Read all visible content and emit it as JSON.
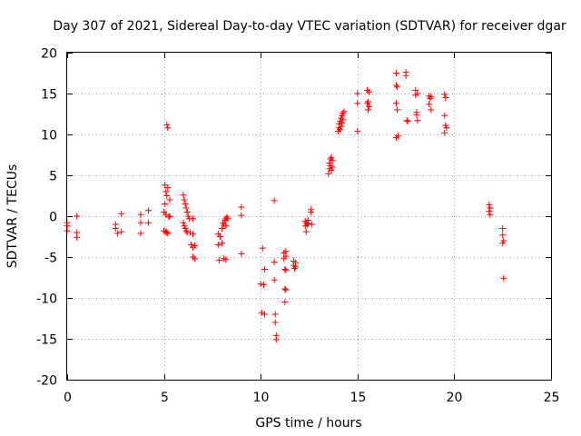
{
  "chart_data": {
    "type": "scatter",
    "title": "Day 307 of 2021, Sidereal Day-to-day VTEC variation (SDTVAR) for receiver dgar",
    "xlabel": "GPS time / hours",
    "ylabel": "SDTVAR / TECUs",
    "xlim": [
      0,
      25
    ],
    "ylim": [
      -20,
      20
    ],
    "xticks": [
      0,
      5,
      10,
      15,
      20,
      25
    ],
    "yticks": [
      -20,
      -15,
      -10,
      -5,
      0,
      5,
      10,
      15,
      20
    ],
    "grid": true,
    "marker": "+",
    "color": "#ff0000",
    "series": [
      {
        "name": "SDTVAR",
        "x": [
          0.0,
          0.0,
          0.0,
          0.5,
          0.5,
          0.5,
          2.5,
          2.5,
          2.6,
          2.8,
          2.8,
          3.8,
          3.8,
          3.8,
          4.2,
          4.2,
          5.0,
          5.0,
          5.05,
          5.05,
          5.1,
          5.1,
          5.1,
          5.15,
          5.15,
          5.15,
          5.2,
          5.2,
          5.2,
          5.25,
          5.3,
          5.3,
          6.0,
          6.0,
          6.05,
          6.05,
          6.1,
          6.1,
          6.15,
          6.15,
          6.2,
          6.2,
          6.25,
          6.3,
          6.35,
          6.4,
          6.5,
          6.5,
          6.5,
          6.5,
          6.6,
          6.6,
          7.8,
          7.8,
          7.85,
          7.9,
          8.0,
          8.0,
          8.05,
          8.1,
          8.1,
          8.15,
          8.2,
          8.2,
          8.2,
          8.25,
          8.3,
          9.0,
          9.0,
          9.0,
          10.0,
          10.05,
          10.1,
          10.15,
          10.2,
          10.2,
          10.7,
          10.7,
          10.7,
          10.75,
          10.75,
          10.8,
          10.8,
          11.2,
          11.2,
          11.25,
          11.25,
          11.25,
          11.3,
          11.3,
          11.3,
          11.3,
          11.7,
          11.7,
          11.75,
          11.8,
          11.8,
          12.3,
          12.3,
          12.35,
          12.35,
          12.4,
          12.45,
          12.45,
          12.6,
          12.6,
          12.65,
          13.5,
          13.55,
          13.55,
          13.6,
          13.6,
          13.65,
          13.65,
          13.7,
          13.7,
          14.0,
          14.05,
          14.05,
          14.1,
          14.1,
          14.15,
          14.15,
          14.2,
          14.2,
          14.25,
          14.25,
          14.3,
          15.0,
          15.0,
          15.0,
          15.5,
          15.5,
          15.55,
          15.55,
          15.6,
          15.6,
          17.0,
          17.0,
          17.0,
          17.0,
          17.05,
          17.05,
          17.1,
          17.5,
          17.5,
          17.55,
          17.6,
          18.0,
          18.0,
          18.05,
          18.05,
          18.1,
          18.1,
          18.7,
          18.7,
          18.75,
          18.8,
          18.8,
          19.5,
          19.5,
          19.5,
          19.55,
          19.55,
          19.6,
          21.8,
          21.8,
          21.85,
          21.85,
          22.5,
          22.5,
          22.5,
          22.55,
          22.55
        ],
        "y": [
          -0.8,
          -1.2,
          -1.8,
          0.0,
          -2.0,
          -2.6,
          -1.0,
          -1.5,
          -2.1,
          0.3,
          -1.9,
          0.2,
          -0.8,
          -2.1,
          0.7,
          -0.8,
          -1.8,
          0.5,
          3.8,
          1.5,
          3.0,
          -1.9,
          0.2,
          2.5,
          11.2,
          -2.0,
          10.8,
          3.5,
          -2.1,
          -0.1,
          0.0,
          2.0,
          -0.8,
          2.6,
          2.0,
          -1.2,
          1.5,
          -1.5,
          1.0,
          -1.8,
          0.5,
          -2.0,
          0.0,
          -0.3,
          -2.0,
          -3.5,
          -5.0,
          -0.3,
          -2.2,
          -3.8,
          -5.2,
          -3.6,
          -2.2,
          -3.5,
          -5.4,
          -2.5,
          -3.3,
          -1.5,
          -0.8,
          -1.0,
          -5.2,
          -0.5,
          -0.3,
          -1.2,
          -5.3,
          -0.1,
          -0.3,
          1.1,
          0.1,
          -4.6,
          -8.3,
          -11.8,
          -3.9,
          -8.4,
          -6.5,
          -12.0,
          1.9,
          -5.6,
          -7.8,
          -12.0,
          -13.0,
          -14.6,
          -15.1,
          -4.5,
          -5.2,
          -6.5,
          -8.9,
          -10.5,
          -4.3,
          -4.9,
          -6.6,
          -9.0,
          -5.5,
          -6.0,
          -6.4,
          -5.7,
          -6.2,
          -0.6,
          -1.2,
          -1.9,
          -0.8,
          -1.0,
          -0.5,
          -0.9,
          0.8,
          0.5,
          -1.0,
          5.2,
          5.8,
          6.5,
          7.0,
          6.2,
          7.2,
          5.6,
          6.8,
          6.0,
          10.4,
          10.8,
          11.3,
          10.6,
          11.6,
          11.0,
          12.0,
          11.4,
          12.3,
          11.8,
          12.6,
          12.8,
          15.0,
          13.8,
          10.4,
          15.4,
          13.8,
          13.0,
          14.0,
          15.2,
          13.4,
          17.5,
          16.0,
          13.8,
          9.6,
          15.8,
          13.0,
          9.8,
          17.6,
          17.2,
          11.7,
          11.6,
          15.4,
          14.8,
          12.7,
          12.4,
          15.0,
          11.7,
          14.7,
          13.7,
          14.4,
          13.0,
          14.6,
          14.9,
          12.3,
          10.2,
          11.1,
          14.5,
          10.8,
          1.4,
          0.6,
          1.0,
          0.2,
          -1.5,
          -2.3,
          -3.3,
          -3.0,
          -7.6
        ]
      }
    ]
  }
}
